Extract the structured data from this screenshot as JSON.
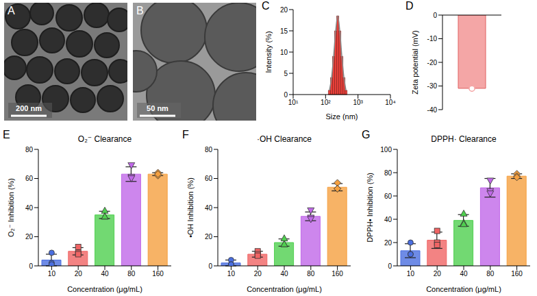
{
  "chart_data": [
    {
      "type": "image",
      "label": "A",
      "scale_bar": "200 nm"
    },
    {
      "type": "image",
      "label": "B",
      "scale_bar": "50 nm"
    },
    {
      "type": "histogram",
      "label": "C",
      "xlabel": "Size (nm)",
      "ylabel": "Intensity (%)",
      "bins": [
        122,
        142,
        164,
        190,
        220,
        255,
        295,
        342,
        396,
        459
      ],
      "counts": [
        1,
        4,
        9,
        15,
        18.5,
        15,
        9,
        4,
        1
      ],
      "color": "#e8403a",
      "log": "x",
      "xlim": [
        10,
        10000
      ],
      "xticks": [
        {
          "value": 10,
          "label": "10¹"
        },
        {
          "value": 100,
          "label": "10²"
        },
        {
          "value": 1000,
          "label": "10³"
        },
        {
          "value": 10000,
          "label": "10⁴"
        }
      ],
      "ylim": [
        0,
        20
      ],
      "yticks": [
        0,
        5,
        10,
        15,
        20
      ]
    },
    {
      "type": "bar",
      "label": "D",
      "ylabel": "Zeta potential (mV)",
      "categories": [
        null
      ],
      "values": [
        -31
      ],
      "points": [
        [
          -30.8,
          -31,
          -31.1
        ]
      ],
      "ylim": [
        -40,
        0
      ],
      "yticks": [
        -40,
        -30,
        -20,
        -10,
        0
      ],
      "color": "#f4a6a6",
      "marker": "circle"
    },
    {
      "type": "bar",
      "label": "E",
      "title": "O₂⁻ Clearance",
      "xlabel": "Concentration (μg/mL)",
      "ylabel": "O₂⁻ Inhibition (%)",
      "categories": [
        "10",
        "20",
        "40",
        "80",
        "160"
      ],
      "values": [
        4,
        10,
        35,
        63,
        63
      ],
      "errors": [
        4,
        2.5,
        2.5,
        5,
        1
      ],
      "points": [
        [
          9,
          2,
          1
        ],
        [
          13,
          9,
          8
        ],
        [
          38,
          34,
          34
        ],
        [
          69,
          61,
          60
        ],
        [
          64,
          62,
          63
        ]
      ],
      "colors": [
        "#4a6ee0",
        "#f06464",
        "#4fcf4f",
        "#c068e8",
        "#f5a040"
      ],
      "marker": [
        "circle",
        "square",
        "triangle",
        "triangle-down",
        "diamond"
      ],
      "ylim": [
        0,
        80
      ],
      "yticks": [
        0,
        20,
        40,
        60,
        80
      ]
    },
    {
      "type": "bar",
      "label": "F",
      "title": "·OH Clearance",
      "xlabel": "Concentration (μg/mL)",
      "ylabel": "•OH Inhibition (%)",
      "categories": [
        "10",
        "20",
        "40",
        "80",
        "160"
      ],
      "values": [
        2,
        8,
        16,
        34,
        54
      ],
      "errors": [
        2,
        2,
        2.5,
        3,
        2.5
      ],
      "points": [
        [
          4,
          1,
          1
        ],
        [
          10,
          8,
          7
        ],
        [
          19,
          15,
          15
        ],
        [
          38,
          33,
          32
        ],
        [
          57,
          53,
          53
        ]
      ],
      "colors": [
        "#4a6ee0",
        "#f06464",
        "#4fcf4f",
        "#c068e8",
        "#f5a040"
      ],
      "marker": [
        "circle",
        "square",
        "triangle",
        "triangle-down",
        "diamond"
      ],
      "ylim": [
        0,
        80
      ],
      "yticks": [
        0,
        20,
        40,
        60,
        80
      ]
    },
    {
      "type": "bar",
      "label": "G",
      "title": "DPPH· Clearance",
      "xlabel": "Concentration (μg/mL)",
      "ylabel": "DPPH• Inhibition (%)",
      "categories": [
        "10",
        "20",
        "40",
        "80",
        "160"
      ],
      "values": [
        13,
        22,
        39,
        67,
        77
      ],
      "errors": [
        6,
        7,
        5,
        8,
        2
      ],
      "points": [
        [
          20,
          10,
          10
        ],
        [
          30,
          20,
          18
        ],
        [
          45,
          37,
          36
        ],
        [
          73,
          64,
          62
        ],
        [
          79,
          77,
          76
        ]
      ],
      "colors": [
        "#4a6ee0",
        "#f06464",
        "#4fcf4f",
        "#c068e8",
        "#f5a040"
      ],
      "marker": [
        "circle",
        "square",
        "triangle",
        "triangle-down",
        "diamond"
      ],
      "ylim": [
        0,
        100
      ],
      "yticks": [
        0,
        20,
        40,
        60,
        80,
        100
      ]
    }
  ]
}
